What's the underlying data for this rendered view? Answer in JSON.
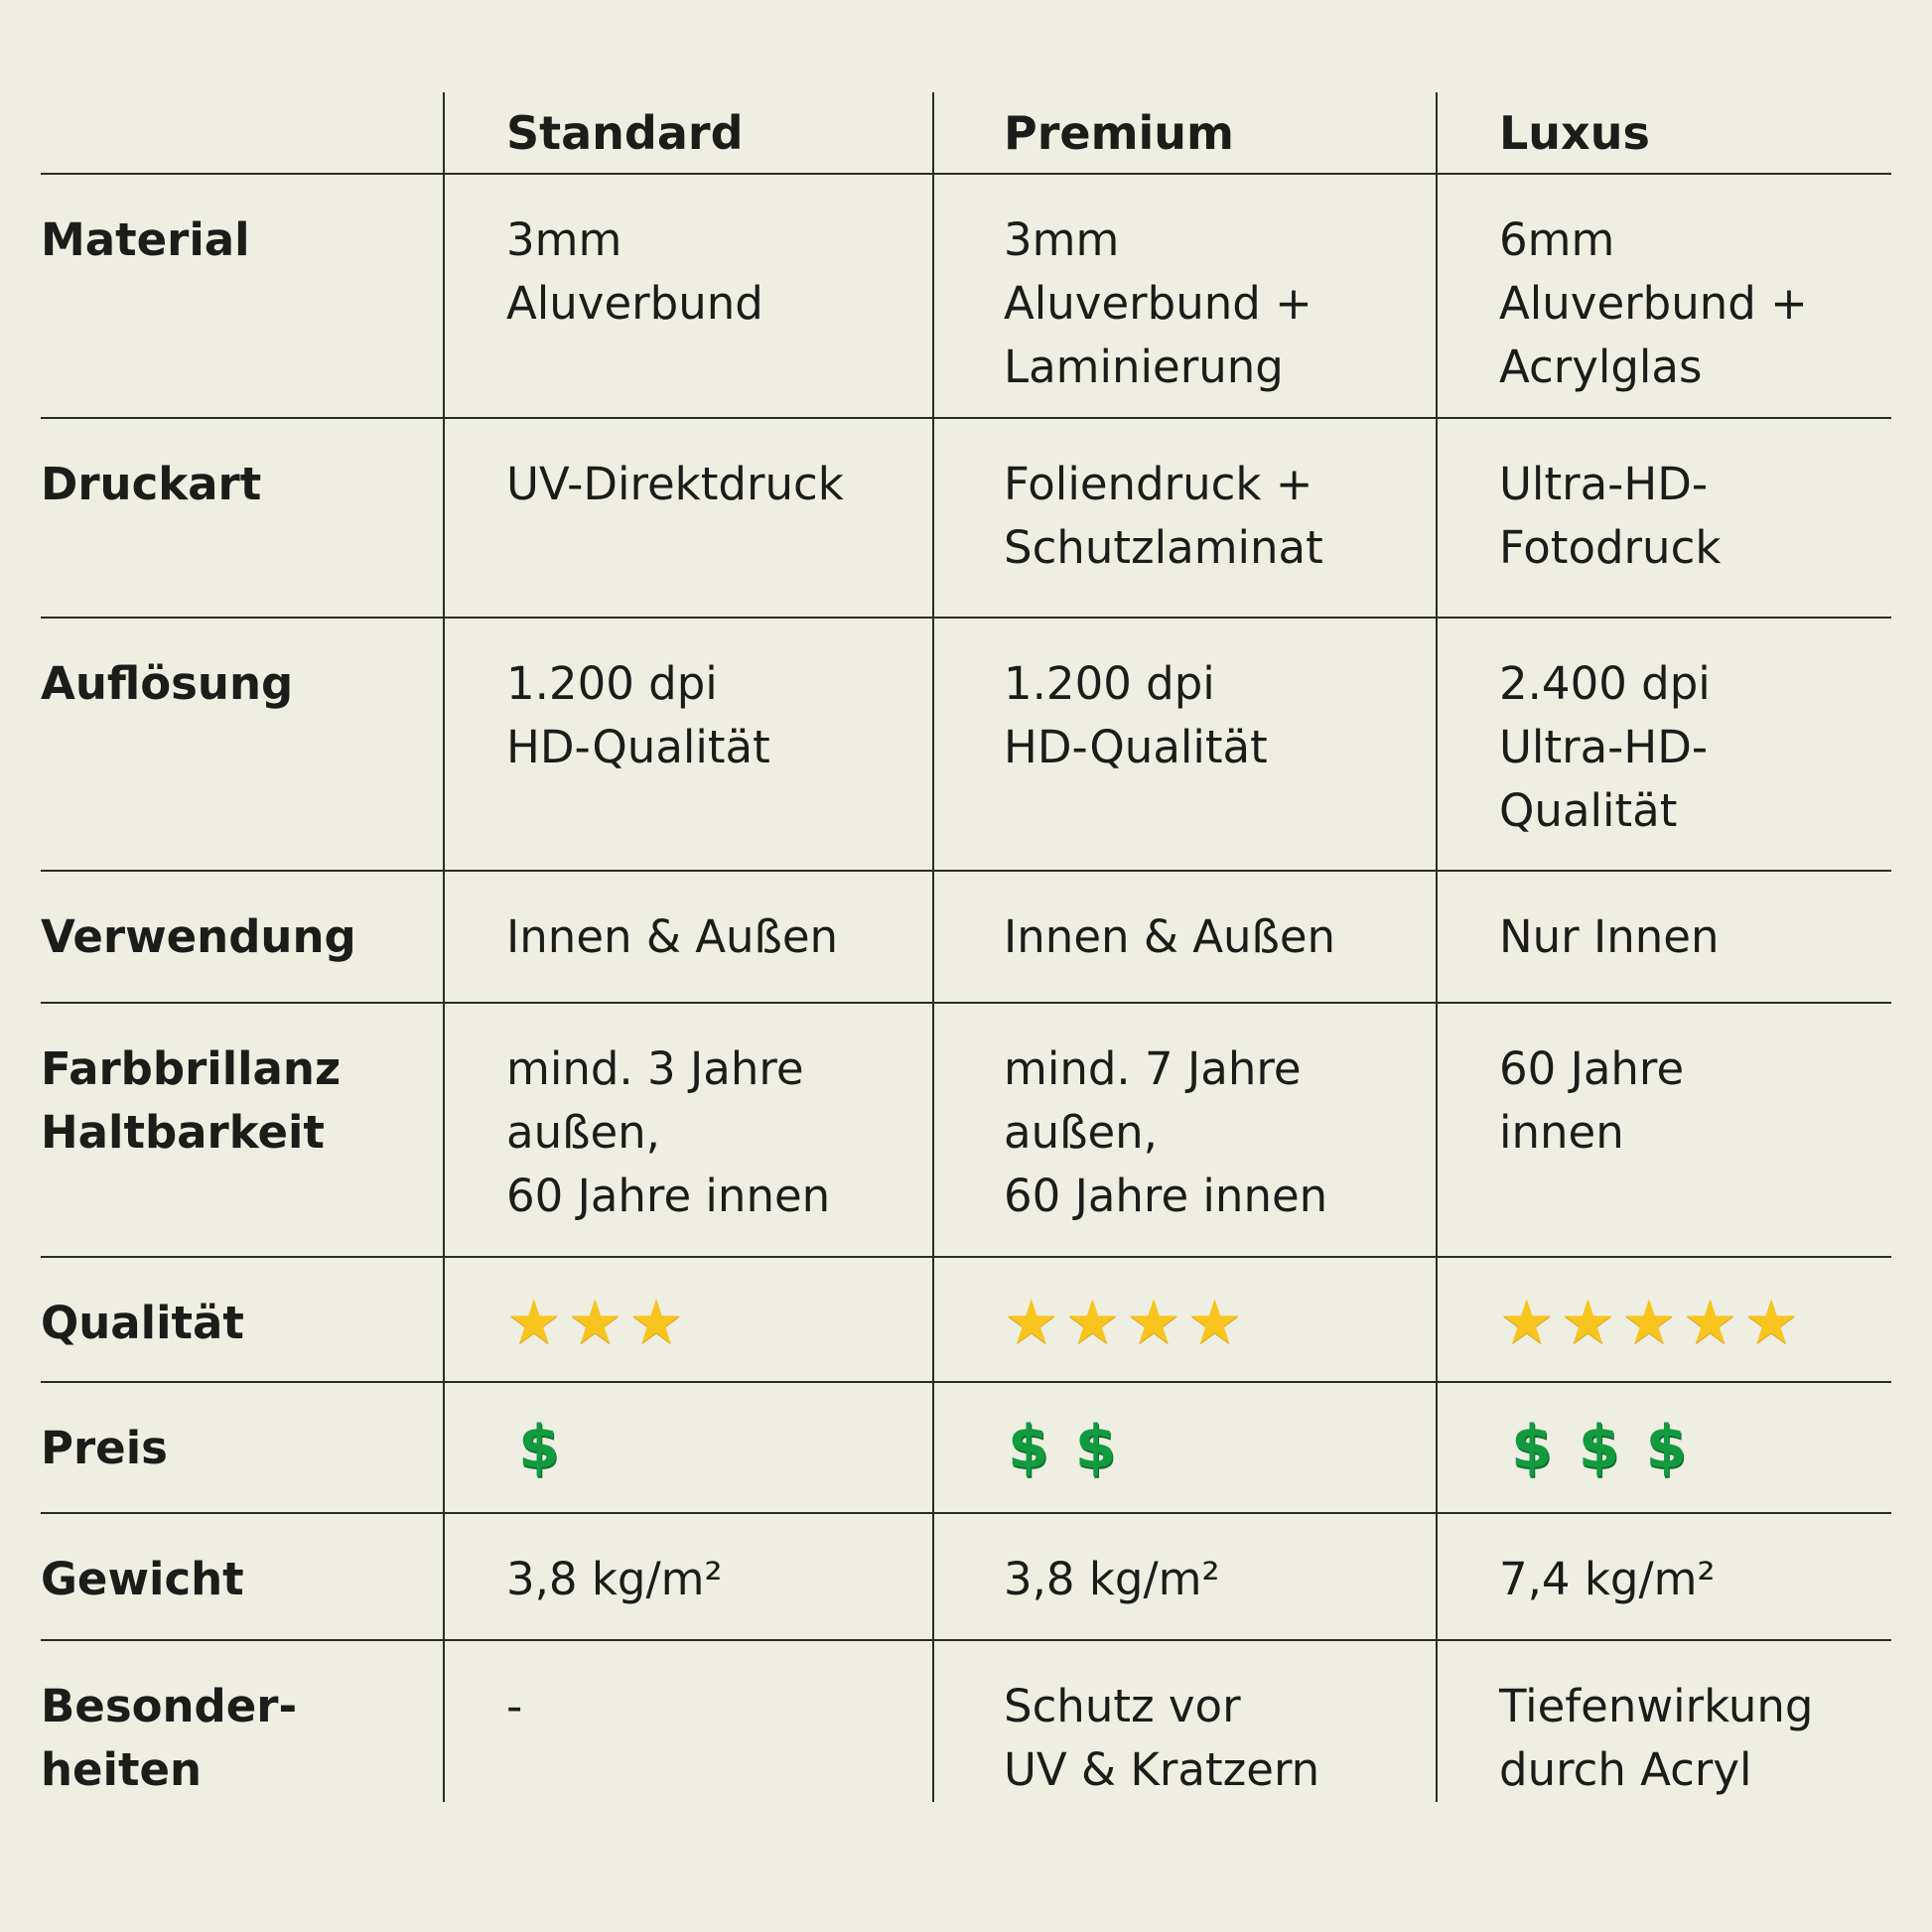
{
  "columns": [
    "Standard",
    "Premium",
    "Luxus"
  ],
  "rows": [
    {
      "label": "Material",
      "values": [
        "3mm\nAluverbund",
        "3mm\nAluverbund +\nLaminierung",
        "6mm\nAluverbund +\nAcrylglas"
      ]
    },
    {
      "label": "Druckart",
      "values": [
        "UV-Direktdruck",
        "Foliendruck +\nSchutzlaminat",
        "Ultra-HD-\nFotodruck"
      ]
    },
    {
      "label": "Auflösung",
      "values": [
        "1.200 dpi\nHD-Qualität",
        "1.200 dpi\nHD-Qualität",
        "2.400 dpi\nUltra-HD-\nQualität"
      ]
    },
    {
      "label": "Verwendung",
      "values": [
        "Innen & Außen",
        "Innen & Außen",
        "Nur Innen"
      ]
    },
    {
      "label": "Farbbrillanz\nHaltbarkeit",
      "values": [
        "mind. 3 Jahre\naußen,\n60 Jahre innen",
        "mind. 7 Jahre\naußen,\n60 Jahre innen",
        "60 Jahre\ninnen"
      ]
    },
    {
      "label": "Qualität",
      "stars": [
        3,
        4,
        5
      ],
      "star_icon": "star-icon",
      "star_color": "#f7c51e"
    },
    {
      "label": "Preis",
      "dollars": [
        1,
        2,
        3
      ],
      "dollar_icon": "dollar-icon",
      "dollar_color": "#129a3e"
    },
    {
      "label": "Gewicht",
      "values": [
        "3,8 kg/m²",
        "3,8 kg/m²",
        "7,4 kg/m²"
      ]
    },
    {
      "label": "Besonder-\nheiten",
      "values": [
        "-",
        "Schutz vor\nUV & Kratzern",
        "Tiefenwirkung\ndurch Acryl"
      ]
    }
  ]
}
